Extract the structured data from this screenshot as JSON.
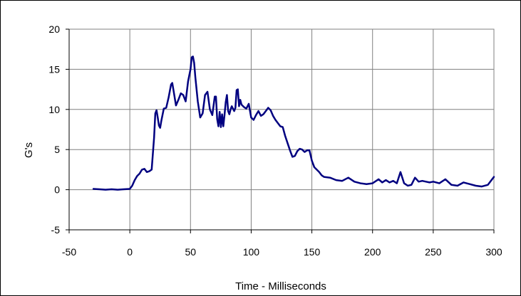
{
  "chart_data": {
    "type": "line",
    "title": "",
    "xlabel": "Time - Milliseconds",
    "ylabel": "G's",
    "xlim": [
      -50,
      300
    ],
    "ylim": [
      -5,
      20
    ],
    "xticks": [
      -50,
      0,
      50,
      100,
      150,
      200,
      250,
      300
    ],
    "yticks": [
      -5,
      0,
      5,
      10,
      15,
      20
    ],
    "grid": true,
    "legend": "none",
    "series": [
      {
        "name": "",
        "color": "#000080",
        "x": [
          -30,
          -25,
          -20,
          -15,
          -10,
          -5,
          0,
          2,
          4,
          6,
          8,
          10,
          12,
          14,
          16,
          18,
          20,
          21,
          22,
          23,
          24,
          25,
          26,
          28,
          30,
          32,
          34,
          35,
          36,
          38,
          40,
          42,
          44,
          46,
          48,
          50,
          51,
          52,
          53,
          54,
          56,
          58,
          60,
          62,
          64,
          66,
          68,
          70,
          71,
          72,
          73,
          74,
          75,
          76,
          77,
          78,
          79,
          80,
          81,
          82,
          83,
          84,
          85,
          86,
          87,
          88,
          89,
          90,
          91,
          92,
          94,
          96,
          98,
          100,
          102,
          104,
          106,
          108,
          110,
          112,
          114,
          116,
          118,
          120,
          122,
          124,
          126,
          128,
          130,
          132,
          134,
          136,
          138,
          140,
          142,
          144,
          146,
          148,
          150,
          152,
          154,
          156,
          158,
          160,
          165,
          170,
          175,
          180,
          185,
          190,
          195,
          200,
          205,
          208,
          211,
          214,
          217,
          220,
          223,
          226,
          229,
          232,
          235,
          238,
          241,
          244,
          247,
          250,
          255,
          260,
          265,
          270,
          275,
          280,
          285,
          290,
          295,
          300
        ],
        "values": [
          0.1,
          0.05,
          0.0,
          0.05,
          0.0,
          0.05,
          0.1,
          0.5,
          1.2,
          1.7,
          2.0,
          2.5,
          2.6,
          2.2,
          2.3,
          2.5,
          6.5,
          9.5,
          9.9,
          9.0,
          8.0,
          7.7,
          8.6,
          10.1,
          10.2,
          11.5,
          13.1,
          13.3,
          12.4,
          10.5,
          11.2,
          12.0,
          11.8,
          11.0,
          13.5,
          15.0,
          16.5,
          16.6,
          15.8,
          14.0,
          11.0,
          9.0,
          9.5,
          11.8,
          12.2,
          10.0,
          9.3,
          11.6,
          11.6,
          8.8,
          7.9,
          9.7,
          7.8,
          9.4,
          7.9,
          9.3,
          10.9,
          11.8,
          9.8,
          9.4,
          10.0,
          10.4,
          10.1,
          9.8,
          10.2,
          12.4,
          12.5,
          10.4,
          11.2,
          10.6,
          10.3,
          10.1,
          10.7,
          9.0,
          8.7,
          9.3,
          9.8,
          9.2,
          9.4,
          9.8,
          10.2,
          9.9,
          9.2,
          8.7,
          8.3,
          7.9,
          7.8,
          6.7,
          5.8,
          4.9,
          4.1,
          4.2,
          4.8,
          5.1,
          5.0,
          4.7,
          4.9,
          4.9,
          3.6,
          2.8,
          2.5,
          2.2,
          1.8,
          1.6,
          1.5,
          1.2,
          1.1,
          1.5,
          1.0,
          0.8,
          0.7,
          0.8,
          1.3,
          0.9,
          1.2,
          0.9,
          1.1,
          0.8,
          2.2,
          0.8,
          0.5,
          0.6,
          1.5,
          1.0,
          1.1,
          1.0,
          0.9,
          1.0,
          0.8,
          1.3,
          0.6,
          0.5,
          0.9,
          0.7,
          0.5,
          0.4,
          0.6,
          1.6
        ]
      }
    ]
  }
}
